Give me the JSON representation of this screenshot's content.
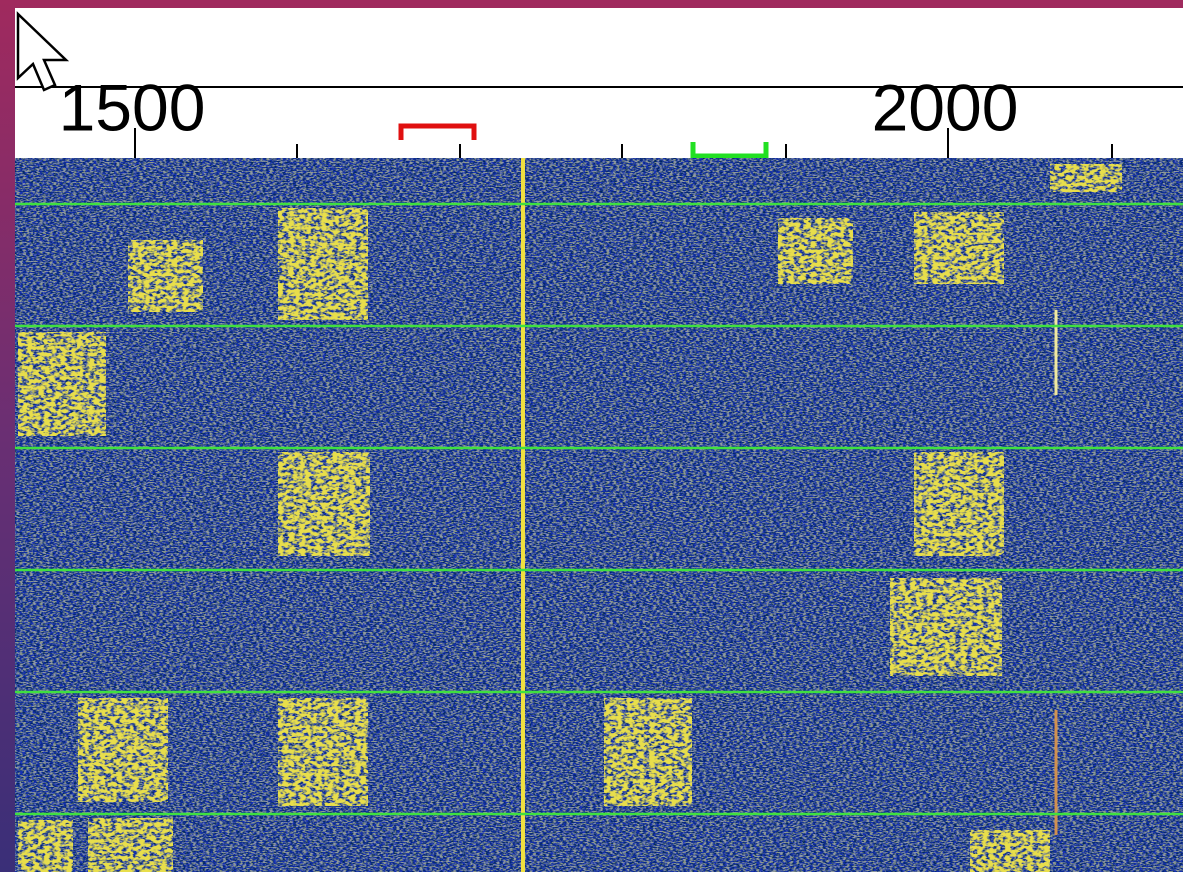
{
  "frequency_scale": {
    "labels": [
      "1500",
      "2000"
    ]
  }
}
